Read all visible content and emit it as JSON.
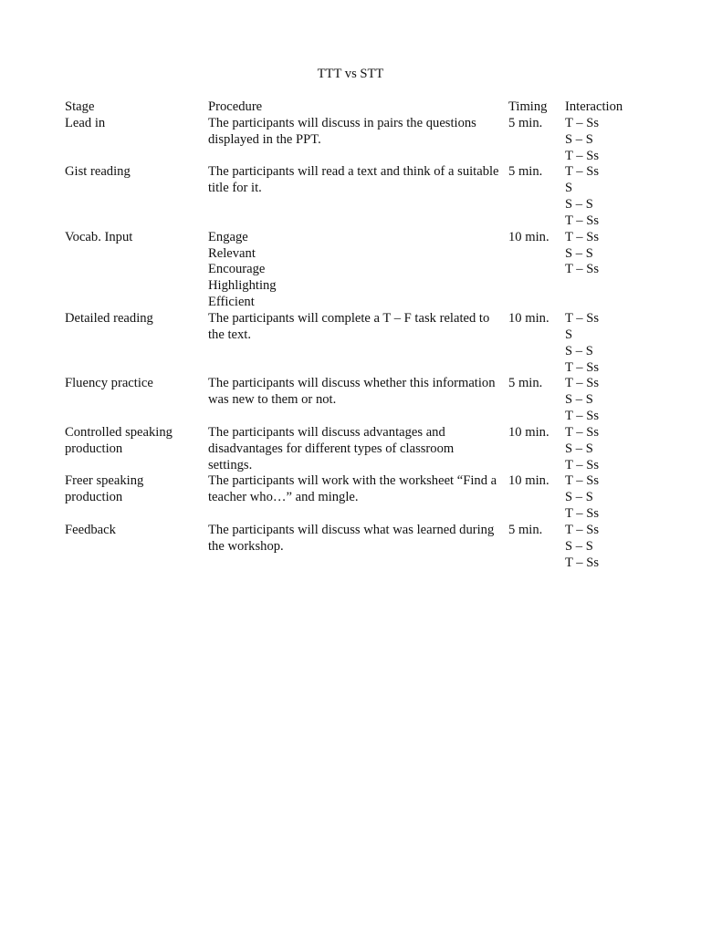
{
  "title": "TTT vs STT",
  "headers": {
    "stage": "Stage",
    "procedure": "Procedure",
    "timing": "Timing",
    "interaction": "Interaction"
  },
  "rows": [
    {
      "stage": [
        "Lead in"
      ],
      "procedure": [
        "The participants will discuss in pairs the questions",
        "displayed in the PPT."
      ],
      "timing": "5 min.",
      "interaction": [
        "T – Ss",
        "S – S",
        "T – Ss"
      ]
    },
    {
      "stage": [
        "Gist reading"
      ],
      "procedure": [
        "The participants will read a text and think of a suitable",
        "title for it."
      ],
      "timing": "5 min.",
      "interaction": [
        "T – Ss",
        "S",
        "S – S",
        "T – Ss"
      ]
    },
    {
      "stage": [
        "Vocab. Input"
      ],
      "procedure": [
        "Engage",
        "Relevant",
        "Encourage",
        "Highlighting",
        "Efficient"
      ],
      "timing": "10 min.",
      "interaction": [
        "T – Ss",
        "S – S",
        "T – Ss"
      ]
    },
    {
      "stage": [
        "Detailed reading"
      ],
      "procedure": [
        "The participants will complete a T – F task related to",
        "the text."
      ],
      "timing": "10 min.",
      "interaction": [
        "T – Ss",
        "S",
        "S – S",
        "T – Ss"
      ]
    },
    {
      "stage": [
        "Fluency practice"
      ],
      "procedure": [
        "The participants will discuss whether this information",
        "was new to them or not."
      ],
      "timing": "5 min.",
      "interaction": [
        "T – Ss",
        "S – S",
        "T – Ss"
      ]
    },
    {
      "stage": [
        "Controlled speaking",
        "production"
      ],
      "procedure": [
        "The participants will discuss advantages and",
        "disadvantages for different types of classroom",
        "settings."
      ],
      "timing": "10 min.",
      "interaction": [
        "T – Ss",
        "S – S",
        "T – Ss"
      ]
    },
    {
      "stage": [
        "Freer speaking",
        "production"
      ],
      "procedure": [
        "The participants will work with the worksheet “Find a",
        "teacher who…” and mingle."
      ],
      "timing": "10 min.",
      "interaction": [
        "T – Ss",
        "S – S",
        "T – Ss"
      ]
    },
    {
      "stage": [
        "Feedback"
      ],
      "procedure": [
        "The participants will discuss what was learned during",
        "the workshop."
      ],
      "timing": "5 min.",
      "interaction": [
        "T – Ss",
        "S – S",
        "T – Ss"
      ]
    }
  ]
}
